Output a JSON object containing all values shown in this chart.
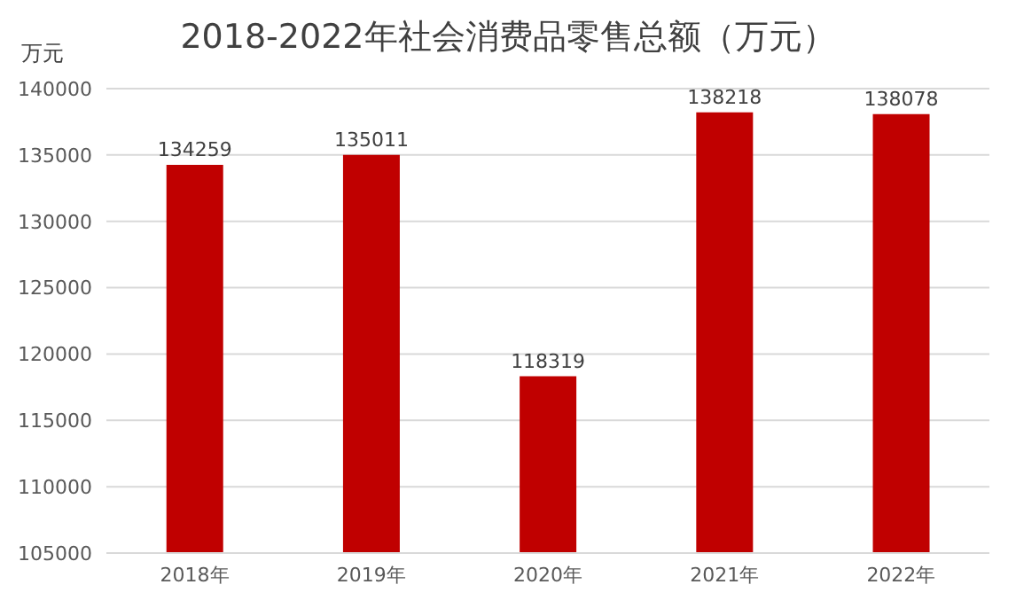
{
  "chart_data": {
    "type": "bar",
    "title": "2018-2022年社会消费品零售总额（万元）",
    "ylabel": "万元",
    "categories": [
      "2018年",
      "2019年",
      "2020年",
      "2021年",
      "2022年"
    ],
    "values": [
      134259,
      135011,
      118319,
      138218,
      138078
    ],
    "color": "#c00000",
    "ylim": [
      105000,
      140000
    ],
    "yticks": [
      105000,
      110000,
      115000,
      120000,
      125000,
      130000,
      135000,
      140000
    ],
    "grid": "y",
    "data_labels": true
  }
}
